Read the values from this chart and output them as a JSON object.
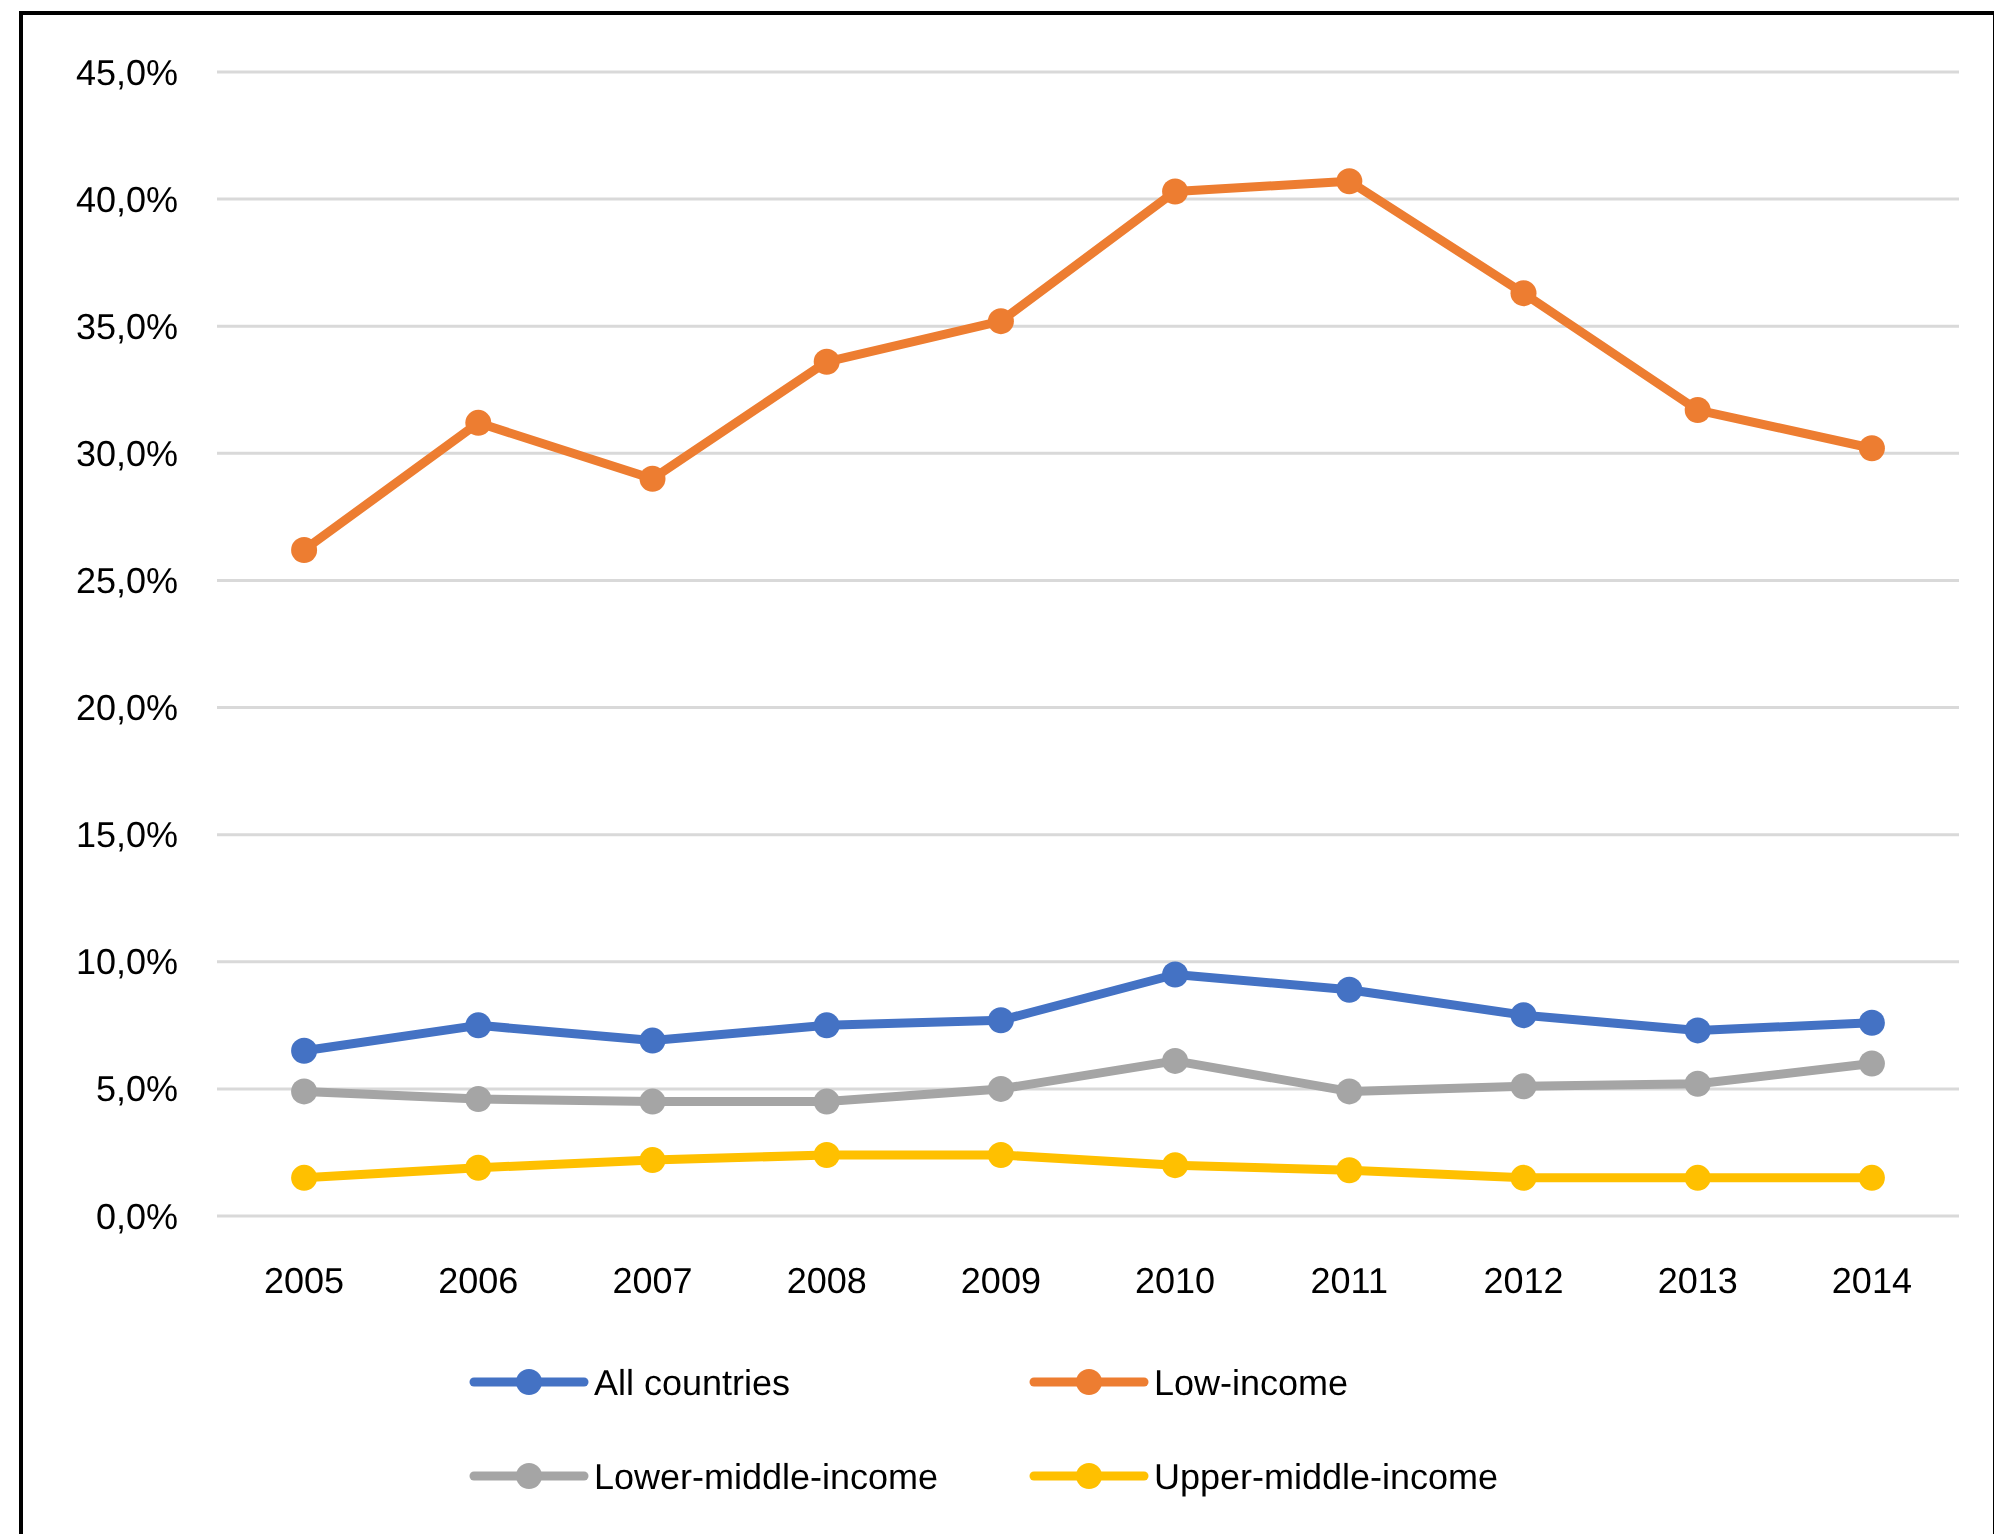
{
  "chart_data": {
    "type": "line",
    "categories": [
      "2005",
      "2006",
      "2007",
      "2008",
      "2009",
      "2010",
      "2011",
      "2012",
      "2013",
      "2014"
    ],
    "ylim": [
      0,
      45
    ],
    "yticks": [
      {
        "value": 0,
        "label": "0,0%"
      },
      {
        "value": 5,
        "label": "5,0%"
      },
      {
        "value": 10,
        "label": "10,0%"
      },
      {
        "value": 15,
        "label": "15,0%"
      },
      {
        "value": 20,
        "label": "20,0%"
      },
      {
        "value": 25,
        "label": "25,0%"
      },
      {
        "value": 30,
        "label": "30,0%"
      },
      {
        "value": 35,
        "label": "35,0%"
      },
      {
        "value": 40,
        "label": "40,0%"
      },
      {
        "value": 45,
        "label": "45,0%"
      }
    ],
    "grid": "y",
    "legend": "bottom",
    "marker": "circle",
    "line_style": "solid",
    "series": [
      {
        "name": "All countries",
        "color": "#4472c4",
        "values": [
          6.5,
          7.5,
          6.9,
          7.5,
          7.7,
          9.5,
          8.9,
          7.9,
          7.3,
          7.6
        ]
      },
      {
        "name": "Low-income",
        "color": "#ed7d31",
        "values": [
          26.2,
          31.2,
          29.0,
          33.6,
          35.2,
          40.3,
          40.7,
          36.3,
          31.7,
          30.2
        ]
      },
      {
        "name": "Lower-middle-income",
        "color": "#a5a5a5",
        "values": [
          4.9,
          4.6,
          4.5,
          4.5,
          5.0,
          6.1,
          4.9,
          5.1,
          5.2,
          6.0
        ]
      },
      {
        "name": "Upper-middle-income",
        "color": "#ffc000",
        "values": [
          1.5,
          1.9,
          2.2,
          2.4,
          2.4,
          2.0,
          1.8,
          1.5,
          1.5,
          1.5
        ]
      }
    ]
  }
}
